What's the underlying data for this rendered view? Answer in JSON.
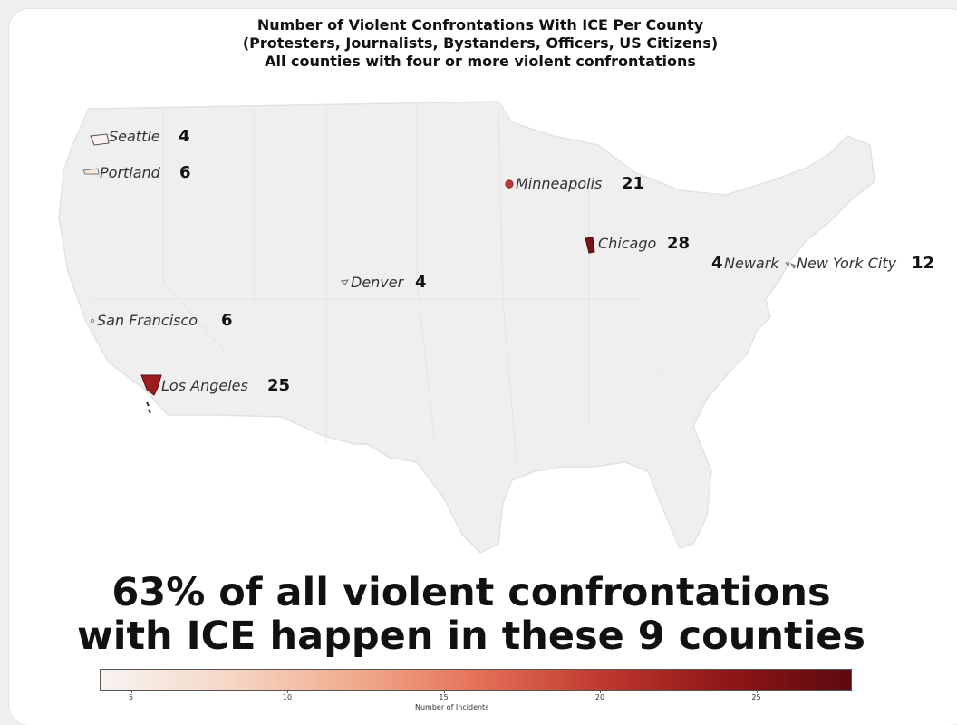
{
  "title": {
    "line1": "Number of Violent Confrontations With ICE Per County",
    "line2": "(Protesters, Journalists, Bystanders, Officers, US Citizens)",
    "line3": "All counties with four or more violent confrontations"
  },
  "map": {
    "base_color": "#efefef",
    "counties": [
      {
        "name": "Seattle",
        "value": 4,
        "color": "#fbf0ec"
      },
      {
        "name": "Portland",
        "value": 6,
        "color": "#fbe6dd"
      },
      {
        "name": "San Francisco",
        "value": 6,
        "color": "#fbe6dd"
      },
      {
        "name": "Los Angeles",
        "value": 25,
        "color": "#9c1d1d"
      },
      {
        "name": "Denver",
        "value": 4,
        "color": "#fbf0ec"
      },
      {
        "name": "Minneapolis",
        "value": 21,
        "color": "#bf3a36"
      },
      {
        "name": "Chicago",
        "value": 28,
        "color": "#7a1414"
      },
      {
        "name": "Newark",
        "value": 4,
        "color": "#fbf0ec"
      },
      {
        "name": "New York City",
        "value": 12,
        "color": "#f29a78"
      }
    ]
  },
  "headline": {
    "line1": "63% of all violent confrontations",
    "line2": "with ICE happen in these 9 counties"
  },
  "colorbar": {
    "min": 4,
    "max": 28,
    "colors": [
      "#f7f4f2",
      "#f6d8c8",
      "#f1ad8f",
      "#e57259",
      "#c0392f",
      "#8e1717",
      "#5c0a10"
    ],
    "ticks": [
      "5",
      "10",
      "15",
      "20",
      "25"
    ],
    "tick_values": [
      5,
      10,
      15,
      20,
      25
    ],
    "label": "Number of Incidents"
  }
}
